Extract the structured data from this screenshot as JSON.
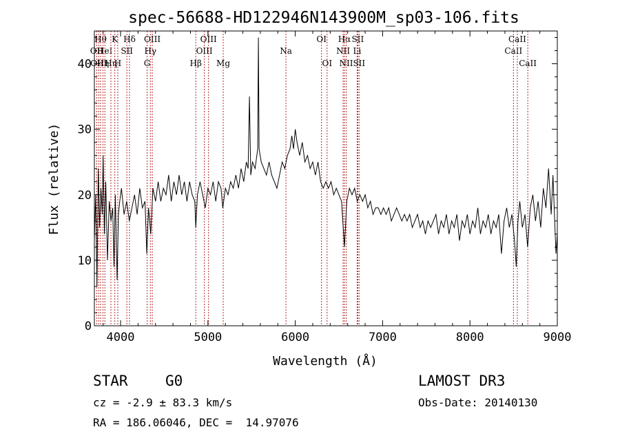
{
  "title": "spec-56688-HD122946N143900M_sp03-106.fits",
  "info": {
    "class_label": "STAR",
    "subclass": "G0",
    "survey": "LAMOST DR3",
    "cz": "cz = -2.9 ± 83.3 km/s",
    "obs_date": "Obs-Date: 20140130",
    "coords": "RA = 186.06046, DEC =  14.97076"
  },
  "chart_data": {
    "type": "line",
    "title": "spec-56688-HD122946N143900M_sp03-106.fits",
    "xlabel": "Wavelength (Å)",
    "ylabel": "Flux (relative)",
    "xlim": [
      3700,
      9000
    ],
    "ylim": [
      0,
      45
    ],
    "xticks": [
      4000,
      5000,
      6000,
      7000,
      8000,
      9000
    ],
    "yticks": [
      0,
      10,
      20,
      30,
      40
    ],
    "xtick_labels": [
      "4000",
      "5000",
      "6000",
      "7000",
      "8000",
      "9000"
    ],
    "ytick_labels": [
      "0",
      "10",
      "20",
      "30",
      "40"
    ],
    "spectrum": [
      [
        3700,
        13
      ],
      [
        3715,
        20
      ],
      [
        3730,
        6
      ],
      [
        3745,
        24
      ],
      [
        3760,
        15
      ],
      [
        3775,
        21
      ],
      [
        3790,
        17
      ],
      [
        3800,
        26
      ],
      [
        3815,
        14
      ],
      [
        3830,
        22
      ],
      [
        3850,
        10
      ],
      [
        3870,
        19
      ],
      [
        3890,
        16
      ],
      [
        3910,
        18
      ],
      [
        3925,
        9
      ],
      [
        3940,
        20
      ],
      [
        3960,
        7
      ],
      [
        3975,
        17
      ],
      [
        3990,
        19
      ],
      [
        4010,
        21
      ],
      [
        4040,
        17
      ],
      [
        4070,
        19
      ],
      [
        4100,
        16
      ],
      [
        4130,
        18
      ],
      [
        4160,
        20
      ],
      [
        4190,
        17
      ],
      [
        4220,
        21
      ],
      [
        4250,
        18
      ],
      [
        4280,
        19
      ],
      [
        4300,
        11
      ],
      [
        4320,
        18
      ],
      [
        4345,
        14
      ],
      [
        4370,
        21
      ],
      [
        4400,
        19
      ],
      [
        4430,
        22
      ],
      [
        4460,
        19
      ],
      [
        4490,
        21
      ],
      [
        4520,
        20
      ],
      [
        4550,
        23
      ],
      [
        4580,
        19
      ],
      [
        4610,
        22
      ],
      [
        4640,
        20
      ],
      [
        4670,
        23
      ],
      [
        4700,
        20
      ],
      [
        4730,
        22
      ],
      [
        4760,
        19
      ],
      [
        4790,
        22
      ],
      [
        4820,
        20
      ],
      [
        4850,
        19
      ],
      [
        4861,
        15
      ],
      [
        4880,
        20
      ],
      [
        4910,
        22
      ],
      [
        4940,
        20
      ],
      [
        4970,
        18
      ],
      [
        5000,
        21
      ],
      [
        5030,
        20
      ],
      [
        5060,
        22
      ],
      [
        5090,
        19
      ],
      [
        5120,
        22
      ],
      [
        5150,
        21
      ],
      [
        5170,
        18
      ],
      [
        5200,
        21
      ],
      [
        5230,
        20
      ],
      [
        5260,
        22
      ],
      [
        5290,
        21
      ],
      [
        5320,
        23
      ],
      [
        5350,
        21
      ],
      [
        5380,
        24
      ],
      [
        5410,
        22
      ],
      [
        5440,
        25
      ],
      [
        5460,
        24
      ],
      [
        5475,
        35
      ],
      [
        5490,
        23
      ],
      [
        5510,
        25
      ],
      [
        5540,
        24
      ],
      [
        5570,
        27
      ],
      [
        5578,
        44
      ],
      [
        5586,
        27
      ],
      [
        5610,
        25
      ],
      [
        5640,
        24
      ],
      [
        5670,
        23
      ],
      [
        5700,
        25
      ],
      [
        5730,
        23
      ],
      [
        5760,
        22
      ],
      [
        5790,
        21
      ],
      [
        5820,
        23
      ],
      [
        5850,
        25
      ],
      [
        5880,
        24
      ],
      [
        5910,
        26
      ],
      [
        5940,
        27
      ],
      [
        5960,
        29
      ],
      [
        5980,
        27
      ],
      [
        6000,
        30
      ],
      [
        6020,
        28
      ],
      [
        6050,
        26
      ],
      [
        6080,
        28
      ],
      [
        6110,
        25
      ],
      [
        6140,
        26
      ],
      [
        6170,
        24
      ],
      [
        6200,
        25
      ],
      [
        6230,
        23
      ],
      [
        6260,
        25
      ],
      [
        6290,
        22
      ],
      [
        6320,
        21
      ],
      [
        6350,
        22
      ],
      [
        6380,
        21
      ],
      [
        6410,
        22
      ],
      [
        6440,
        20
      ],
      [
        6470,
        21
      ],
      [
        6500,
        20
      ],
      [
        6530,
        19
      ],
      [
        6563,
        12
      ],
      [
        6590,
        19
      ],
      [
        6620,
        21
      ],
      [
        6650,
        20
      ],
      [
        6680,
        21
      ],
      [
        6710,
        19
      ],
      [
        6740,
        20
      ],
      [
        6770,
        19
      ],
      [
        6800,
        20
      ],
      [
        6830,
        18
      ],
      [
        6860,
        19
      ],
      [
        6890,
        17
      ],
      [
        6920,
        18
      ],
      [
        6950,
        18
      ],
      [
        6980,
        17
      ],
      [
        7010,
        18
      ],
      [
        7040,
        17
      ],
      [
        7070,
        18
      ],
      [
        7100,
        16
      ],
      [
        7130,
        17
      ],
      [
        7160,
        18
      ],
      [
        7190,
        17
      ],
      [
        7220,
        16
      ],
      [
        7250,
        17
      ],
      [
        7280,
        16
      ],
      [
        7310,
        17
      ],
      [
        7340,
        15
      ],
      [
        7370,
        16
      ],
      [
        7400,
        17
      ],
      [
        7430,
        15
      ],
      [
        7460,
        16
      ],
      [
        7490,
        14
      ],
      [
        7520,
        16
      ],
      [
        7550,
        15
      ],
      [
        7580,
        16
      ],
      [
        7610,
        17
      ],
      [
        7640,
        14
      ],
      [
        7670,
        16
      ],
      [
        7700,
        15
      ],
      [
        7730,
        17
      ],
      [
        7760,
        14
      ],
      [
        7790,
        16
      ],
      [
        7820,
        15
      ],
      [
        7850,
        17
      ],
      [
        7880,
        13
      ],
      [
        7910,
        16
      ],
      [
        7940,
        15
      ],
      [
        7970,
        17
      ],
      [
        8000,
        14
      ],
      [
        8030,
        16
      ],
      [
        8060,
        15
      ],
      [
        8090,
        18
      ],
      [
        8120,
        14
      ],
      [
        8150,
        16
      ],
      [
        8180,
        15
      ],
      [
        8210,
        17
      ],
      [
        8240,
        14
      ],
      [
        8270,
        16
      ],
      [
        8300,
        15
      ],
      [
        8330,
        17
      ],
      [
        8360,
        11
      ],
      [
        8390,
        16
      ],
      [
        8420,
        18
      ],
      [
        8450,
        15
      ],
      [
        8480,
        17
      ],
      [
        8510,
        13
      ],
      [
        8530,
        9
      ],
      [
        8550,
        16
      ],
      [
        8570,
        19
      ],
      [
        8600,
        15
      ],
      [
        8630,
        17
      ],
      [
        8660,
        12
      ],
      [
        8690,
        18
      ],
      [
        8720,
        20
      ],
      [
        8750,
        16
      ],
      [
        8780,
        19
      ],
      [
        8810,
        15
      ],
      [
        8840,
        21
      ],
      [
        8870,
        18
      ],
      [
        8900,
        24
      ],
      [
        8930,
        17
      ],
      [
        8950,
        23
      ],
      [
        8970,
        16
      ],
      [
        8985,
        11
      ],
      [
        9000,
        14
      ]
    ],
    "spectral_lines": [
      {
        "wavelength": 3727,
        "label": "OII",
        "row": 2
      },
      {
        "wavelength": 3750,
        "label": "OIII",
        "row": 3
      },
      {
        "wavelength": 3771,
        "label": "Hθ",
        "row": 1
      },
      {
        "wavelength": 3798,
        "label": "Hη",
        "row": 3
      },
      {
        "wavelength": 3820,
        "label": "HeI",
        "row": 2
      },
      {
        "wavelength": 3889,
        "label": "Hη",
        "row": 3
      },
      {
        "wavelength": 3934,
        "label": "K",
        "row": 1
      },
      {
        "wavelength": 3968,
        "label": "H",
        "row": 3
      },
      {
        "wavelength": 4072,
        "label": "SII",
        "row": 2
      },
      {
        "wavelength": 4102,
        "label": "Hδ",
        "row": 1
      },
      {
        "wavelength": 4304,
        "label": "G",
        "row": 3
      },
      {
        "wavelength": 4341,
        "label": "Hγ",
        "row": 2
      },
      {
        "wavelength": 4363,
        "label": "OIII",
        "row": 1
      },
      {
        "wavelength": 4861,
        "label": "Hβ",
        "row": 3
      },
      {
        "wavelength": 4959,
        "label": "OIII",
        "row": 2
      },
      {
        "wavelength": 5007,
        "label": "OIII",
        "row": 1
      },
      {
        "wavelength": 5175,
        "label": "Mg",
        "row": 3
      },
      {
        "wavelength": 5893,
        "label": "Na",
        "row": 2
      },
      {
        "wavelength": 6300,
        "label": "OI",
        "row": 1
      },
      {
        "wavelength": 6364,
        "label": "OI",
        "row": 3
      },
      {
        "wavelength": 6548,
        "label": "NII",
        "row": 2
      },
      {
        "wavelength": 6563,
        "label": "Hα",
        "row": 1
      },
      {
        "wavelength": 6583,
        "label": "NII",
        "row": 3
      },
      {
        "wavelength": 6708,
        "label": "Li",
        "row": 2
      },
      {
        "wavelength": 6716,
        "label": "SII",
        "row": 1
      },
      {
        "wavelength": 6731,
        "label": "SII",
        "row": 3
      },
      {
        "wavelength": 8498,
        "label": "CaII",
        "row": 2
      },
      {
        "wavelength": 8542,
        "label": "CaII",
        "row": 1
      },
      {
        "wavelength": 8662,
        "label": "CaII",
        "row": 3
      }
    ],
    "line_color": "#b22222",
    "spectrum_color": "#000000"
  }
}
